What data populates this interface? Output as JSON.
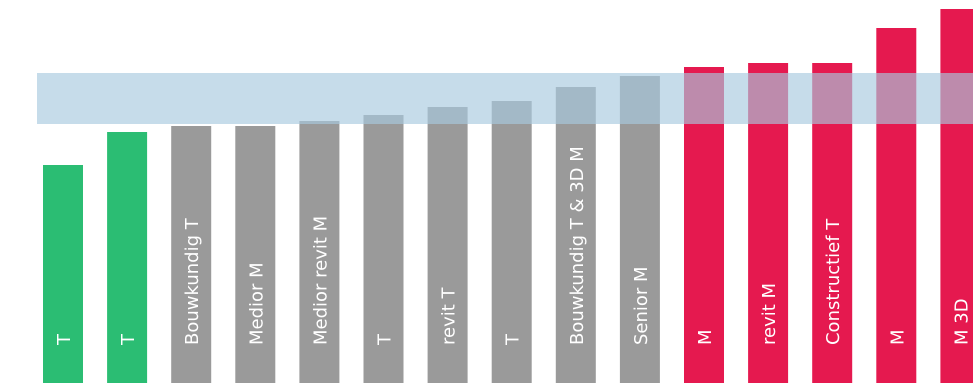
{
  "chart_data": {
    "type": "bar",
    "orientation": "vertical",
    "title": "",
    "xlabel": "",
    "ylabel": "",
    "ylim": [
      0,
      383
    ],
    "grid": false,
    "legend": "none",
    "band": {
      "from": 259,
      "to": 310,
      "color": "#a8cade",
      "opacity": 0.65
    },
    "colors": {
      "green": "#2bbd73",
      "gray": "#9a9a9a",
      "red": "#e5194f"
    },
    "bars": [
      {
        "label": "T",
        "value": 218,
        "color": "green"
      },
      {
        "label": "T",
        "value": 251,
        "color": "green"
      },
      {
        "label": "Bouwkundig T",
        "value": 257,
        "color": "gray"
      },
      {
        "label": "Medior M",
        "value": 257,
        "color": "gray"
      },
      {
        "label": "Medior revit M",
        "value": 262,
        "color": "gray"
      },
      {
        "label": "T",
        "value": 268,
        "color": "gray"
      },
      {
        "label": "revit T",
        "value": 276,
        "color": "gray"
      },
      {
        "label": "T",
        "value": 282,
        "color": "gray"
      },
      {
        "label": "Bouwkundig T & 3D M",
        "value": 296,
        "color": "gray"
      },
      {
        "label": "Senior M",
        "value": 307,
        "color": "gray"
      },
      {
        "label": "M",
        "value": 316,
        "color": "red"
      },
      {
        "label": "revit M",
        "value": 320,
        "color": "red"
      },
      {
        "label": "Constructief T",
        "value": 320,
        "color": "red"
      },
      {
        "label": "M",
        "value": 355,
        "color": "red"
      },
      {
        "label": "M 3D",
        "value": 374,
        "color": "red"
      }
    ]
  }
}
